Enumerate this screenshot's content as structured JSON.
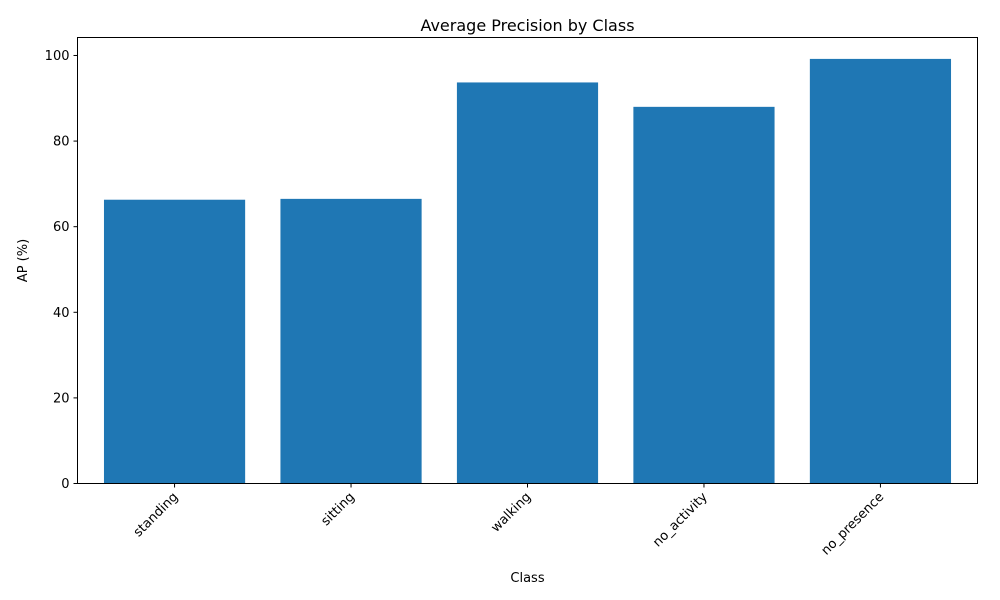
{
  "chart_data": {
    "type": "bar",
    "title": "Average Precision by Class",
    "xlabel": "Class",
    "ylabel": "AP (%)",
    "categories": [
      "standing",
      "sitting",
      "walking",
      "no_activity",
      "no_presence"
    ],
    "values": [
      66.3,
      66.5,
      93.7,
      88.0,
      99.2
    ],
    "ylim": [
      0,
      104.2
    ],
    "yticks": [
      0,
      20,
      40,
      60,
      80,
      100
    ],
    "bar_color": "#1f77b4",
    "grid": false,
    "legend": "none"
  }
}
